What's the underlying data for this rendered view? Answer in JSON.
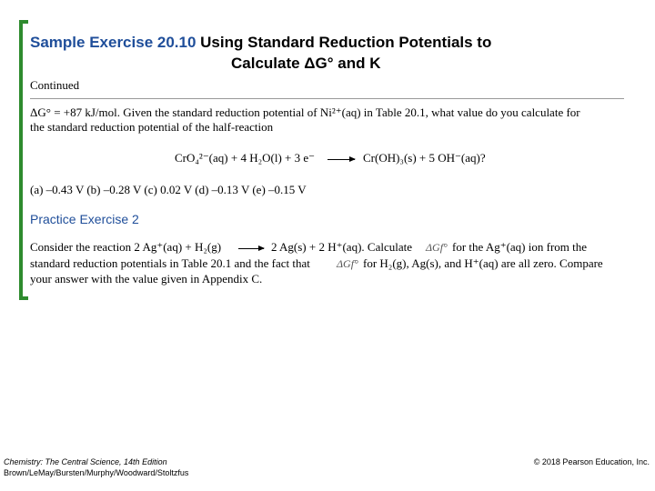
{
  "header": {
    "title_part1": "Sample Exercise 20.10",
    "title_part2": "Using Standard Reduction Potentials to",
    "title_line2": "Calculate ΔG° and K",
    "continued": "Continued"
  },
  "sample": {
    "lines": [
      "ΔG° = +87 kJ/mol. Given the standard reduction potential of Ni²⁺(aq) in Table 20.1, what value do you calculate for",
      "the standard reduction potential of the half-reaction"
    ],
    "equation_left": "CrO₄²⁻(aq) + 4 H₂O(l) + 3 e⁻",
    "equation_right": "Cr(OH)₃(s) + 5 OH⁻(aq)?",
    "answers": "(a) –0.43 V (b) –0.28 V (c) 0.02 V (d) –0.13 V (e) –0.15 V"
  },
  "practice": {
    "title": "Practice Exercise 2",
    "line1_a": "Consider the reaction 2 Ag⁺(aq) + H₂(g)",
    "line1_b": "2 Ag(s) + 2 H⁺(aq). Calculate",
    "symbol": "ΔGf°",
    "line1_c": "for the Ag⁺(aq) ion from the",
    "line2_a": "standard reduction potentials in Table 20.1 and the fact that",
    "line2_b": "for H₂(g), Ag(s), and H⁺(aq) are all zero. Compare",
    "line3": "your answer with the value given in Appendix C."
  },
  "footer": {
    "book": "Chemistry: The Central Science, 14th Edition",
    "authors": "Brown/LeMay/Bursten/Murphy/Woodward/Stoltzfus",
    "copyright": "© 2018 Pearson Education, Inc."
  }
}
